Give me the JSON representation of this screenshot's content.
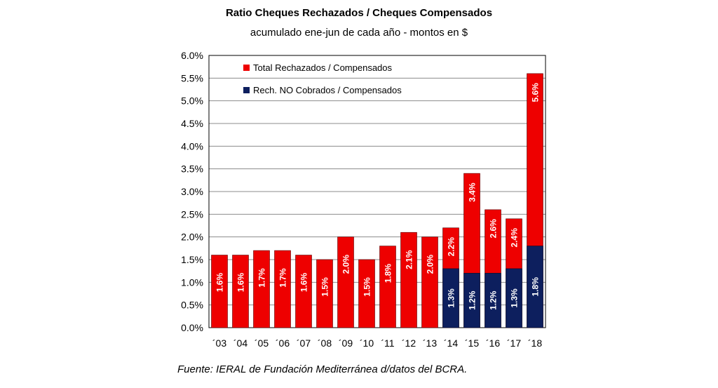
{
  "title": "Ratio Cheques Rechazados / Cheques Compensados",
  "subtitle": "acumulado ene-jun de cada año - montos en $",
  "source": "Fuente: IERAL de Fundación Mediterránea d/datos del BCRA.",
  "colors": {
    "total": "#ee0000",
    "no_cobrados": "#0d1f5e",
    "grid": "#8c8c8c",
    "border": "#000000"
  },
  "chart_data": {
    "type": "bar",
    "categories": [
      "´03",
      "´04",
      "´05",
      "´06",
      "´07",
      "´08",
      "´09",
      "´10",
      "´11",
      "´12",
      "´13",
      "´14",
      "´15",
      "´16",
      "´17",
      "´18"
    ],
    "series": [
      {
        "name": "Total Rechazados / Compensados",
        "values": [
          1.6,
          1.6,
          1.7,
          1.7,
          1.6,
          1.5,
          2.0,
          1.5,
          1.8,
          2.1,
          2.0,
          2.2,
          3.4,
          2.6,
          2.4,
          5.6
        ],
        "labels": [
          "1.6%",
          "1.6%",
          "1.7%",
          "1.7%",
          "1.6%",
          "1.5%",
          "2.0%",
          "1.5%",
          "1.8%",
          "2.1%",
          "2.0%",
          "2.2%",
          "3.4%",
          "2.6%",
          "2.4%",
          "5.6%"
        ]
      },
      {
        "name": "Rech. NO Cobrados / Compensados",
        "values": [
          null,
          null,
          null,
          null,
          null,
          null,
          null,
          null,
          null,
          null,
          null,
          1.3,
          1.2,
          1.2,
          1.3,
          1.8
        ],
        "labels": [
          "",
          "",
          "",
          "",
          "",
          "",
          "",
          "",
          "",
          "",
          "",
          "1.3%",
          "1.2%",
          "1.2%",
          "1.3%",
          "1.8%"
        ]
      }
    ],
    "ylim": [
      0,
      6
    ],
    "yticks": [
      "0.0%",
      "0.5%",
      "1.0%",
      "1.5%",
      "2.0%",
      "2.5%",
      "3.0%",
      "3.5%",
      "4.0%",
      "4.5%",
      "5.0%",
      "5.5%",
      "6.0%"
    ],
    "grid": true,
    "legend_position": "top-left",
    "legend": [
      "Total Rechazados / Compensados",
      "Rech. NO Cobrados / Compensados"
    ]
  }
}
